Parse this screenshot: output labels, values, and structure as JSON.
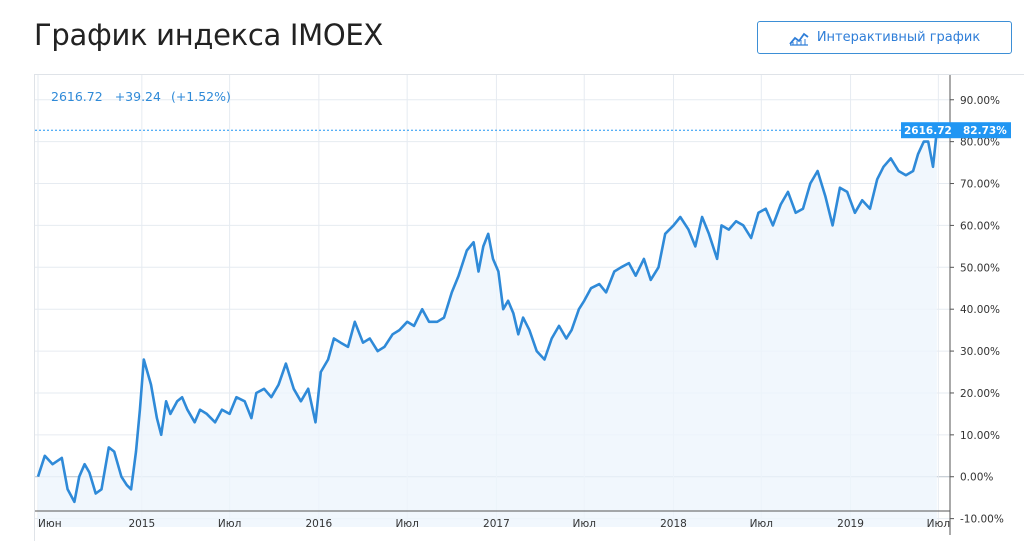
{
  "page": {
    "title": "График индекса IMOEX",
    "interactive_button_label": "Интерактивный график"
  },
  "quote": {
    "value": "2616.72",
    "change": "+39.24",
    "change_pct": "(+1.52%)"
  },
  "last_tag": {
    "value": "2616.72",
    "pct": "82.73%"
  },
  "colors": {
    "line": "#2f8ad8",
    "tag_bg": "#2196f3",
    "grid": "#e6ebf1",
    "area": "#eef5fc"
  },
  "chart_data": {
    "type": "line",
    "title": "",
    "xlabel": "",
    "ylabel": "",
    "y_unit": "%",
    "ylim": [
      -12,
      94
    ],
    "y_ticks": [
      "90.00%",
      "80.00%",
      "70.00%",
      "60.00%",
      "50.00%",
      "40.00%",
      "30.00%",
      "20.00%",
      "10.00%",
      "0.00%",
      "-10.00%"
    ],
    "y_tick_values": [
      90,
      80,
      70,
      60,
      50,
      40,
      30,
      20,
      10,
      0,
      -10
    ],
    "x_start": "2014-06-01",
    "x_end": "2019-07-25",
    "x_ticks": [
      {
        "label": "Июн",
        "date": "2014-06-01"
      },
      {
        "label": "2015",
        "date": "2015-01-01"
      },
      {
        "label": "Июл",
        "date": "2015-07-01"
      },
      {
        "label": "2016",
        "date": "2016-01-01"
      },
      {
        "label": "Июл",
        "date": "2016-07-01"
      },
      {
        "label": "2017",
        "date": "2017-01-01"
      },
      {
        "label": "Июл",
        "date": "2017-07-01"
      },
      {
        "label": "2018",
        "date": "2018-01-01"
      },
      {
        "label": "Июл",
        "date": "2018-07-01"
      },
      {
        "label": "2019",
        "date": "2019-01-01"
      },
      {
        "label": "Июл",
        "date": "2019-07-01"
      }
    ],
    "grid": true,
    "series": [
      {
        "name": "",
        "x": [
          "2014-06-01",
          "2014-06-15",
          "2014-07-01",
          "2014-07-20",
          "2014-08-01",
          "2014-08-15",
          "2014-08-25",
          "2014-09-05",
          "2014-09-15",
          "2014-09-28",
          "2014-10-10",
          "2014-10-25",
          "2014-11-05",
          "2014-11-20",
          "2014-12-01",
          "2014-12-10",
          "2014-12-20",
          "2014-12-28",
          "2015-01-05",
          "2015-01-20",
          "2015-02-01",
          "2015-02-10",
          "2015-02-20",
          "2015-03-01",
          "2015-03-15",
          "2015-03-25",
          "2015-04-05",
          "2015-04-20",
          "2015-05-01",
          "2015-05-15",
          "2015-06-01",
          "2015-06-15",
          "2015-07-01",
          "2015-07-15",
          "2015-08-01",
          "2015-08-15",
          "2015-08-25",
          "2015-09-10",
          "2015-09-25",
          "2015-10-10",
          "2015-10-25",
          "2015-11-10",
          "2015-11-25",
          "2015-12-10",
          "2015-12-25",
          "2016-01-05",
          "2016-01-20",
          "2016-02-01",
          "2016-02-15",
          "2016-03-01",
          "2016-03-15",
          "2016-04-01",
          "2016-04-15",
          "2016-05-01",
          "2016-05-15",
          "2016-06-01",
          "2016-06-15",
          "2016-07-01",
          "2016-07-15",
          "2016-08-01",
          "2016-08-15",
          "2016-09-01",
          "2016-09-15",
          "2016-10-01",
          "2016-10-15",
          "2016-11-01",
          "2016-11-15",
          "2016-11-25",
          "2016-12-05",
          "2016-12-15",
          "2016-12-25",
          "2017-01-05",
          "2017-01-15",
          "2017-01-25",
          "2017-02-05",
          "2017-02-15",
          "2017-02-25",
          "2017-03-10",
          "2017-03-25",
          "2017-04-10",
          "2017-04-25",
          "2017-05-10",
          "2017-05-25",
          "2017-06-05",
          "2017-06-20",
          "2017-07-01",
          "2017-07-15",
          "2017-08-01",
          "2017-08-15",
          "2017-09-01",
          "2017-09-15",
          "2017-10-01",
          "2017-10-15",
          "2017-11-01",
          "2017-11-15",
          "2017-12-01",
          "2017-12-15",
          "2018-01-01",
          "2018-01-15",
          "2018-02-01",
          "2018-02-15",
          "2018-03-01",
          "2018-03-15",
          "2018-04-01",
          "2018-04-10",
          "2018-04-25",
          "2018-05-10",
          "2018-05-25",
          "2018-06-10",
          "2018-06-25",
          "2018-07-10",
          "2018-07-25",
          "2018-08-10",
          "2018-08-25",
          "2018-09-10",
          "2018-09-25",
          "2018-10-10",
          "2018-10-25",
          "2018-11-10",
          "2018-11-25",
          "2018-12-10",
          "2018-12-25",
          "2019-01-10",
          "2019-01-25",
          "2019-02-10",
          "2019-02-25",
          "2019-03-10",
          "2019-03-25",
          "2019-04-10",
          "2019-04-25",
          "2019-05-10",
          "2019-05-20",
          "2019-06-01",
          "2019-06-10",
          "2019-06-20",
          "2019-06-28"
        ],
        "values": [
          0,
          5,
          3,
          4.5,
          -3,
          -6,
          0,
          3,
          1,
          -4,
          -3,
          7,
          6,
          0,
          -2,
          -3,
          6,
          16,
          28,
          22,
          14,
          10,
          18,
          15,
          18,
          19,
          16,
          13,
          16,
          15,
          13,
          16,
          15,
          19,
          18,
          14,
          20,
          21,
          19,
          22,
          27,
          21,
          18,
          21,
          13,
          25,
          28,
          33,
          32,
          31,
          37,
          32,
          33,
          30,
          31,
          34,
          35,
          37,
          36,
          40,
          37,
          37,
          38,
          44,
          48,
          54,
          56,
          49,
          55,
          58,
          52,
          49,
          40,
          42,
          39,
          34,
          38,
          35,
          30,
          28,
          33,
          36,
          33,
          35,
          40,
          42,
          45,
          46,
          44,
          49,
          50,
          51,
          48,
          52,
          47,
          50,
          58,
          60,
          62,
          59,
          55,
          62,
          58,
          52,
          60,
          59,
          61,
          60,
          57,
          63,
          64,
          60,
          65,
          68,
          63,
          64,
          70,
          73,
          67,
          60,
          69,
          68,
          63,
          66,
          64,
          71,
          74,
          76,
          73,
          72,
          73,
          77,
          80,
          80,
          74,
          82.73
        ]
      }
    ]
  }
}
